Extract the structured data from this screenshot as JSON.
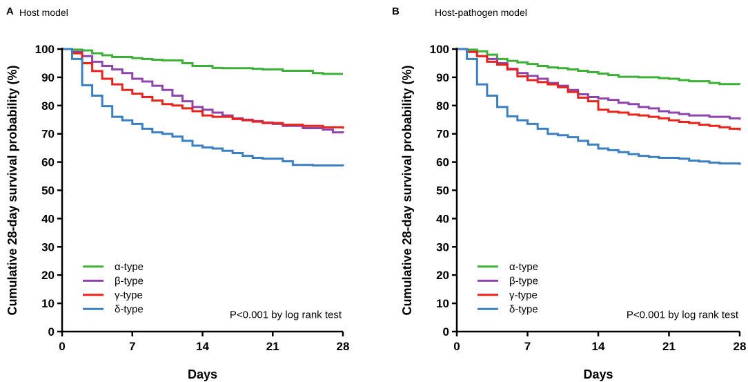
{
  "chart_data": [
    {
      "type": "line",
      "panel_letter": "A",
      "title": "Host model",
      "xlabel": "Days",
      "ylabel": "Cumulative 28-day survival probability (%)",
      "xlim": [
        0,
        28
      ],
      "ylim": [
        0,
        100
      ],
      "xticks": [
        0,
        7,
        14,
        21,
        28
      ],
      "yticks": [
        0,
        10,
        20,
        30,
        40,
        50,
        60,
        70,
        80,
        90,
        100
      ],
      "annotation": "P<0.001 by log rank test",
      "legend_position": "bottom-left",
      "series": [
        {
          "name": "α-type",
          "color": "#3cb034",
          "x": [
            0,
            1,
            2,
            3,
            4,
            5,
            7,
            8,
            9,
            10,
            12,
            13,
            15,
            16,
            19,
            20,
            22,
            25,
            26,
            28
          ],
          "y": [
            100,
            99.8,
            99.5,
            98.5,
            97.8,
            97.2,
            96.8,
            96.5,
            96.2,
            96,
            95,
            94,
            93.3,
            93.2,
            93,
            92.8,
            92.3,
            91.5,
            91.2,
            91.2
          ]
        },
        {
          "name": "β-type",
          "color": "#8e44ad",
          "x": [
            0,
            1,
            2,
            3,
            4,
            5,
            6,
            7,
            8,
            9,
            10,
            11,
            12,
            13,
            14,
            15,
            16,
            17,
            18,
            19,
            20,
            21,
            22,
            24,
            26,
            27,
            28
          ],
          "y": [
            100,
            99,
            97.5,
            95.5,
            94,
            92.8,
            91.5,
            89.5,
            88.5,
            87,
            85.5,
            83.5,
            81.5,
            79.5,
            78.5,
            77.5,
            76.5,
            75.5,
            75,
            74.5,
            74,
            73.5,
            72.8,
            72,
            71.5,
            70.5,
            70.2
          ]
        },
        {
          "name": "γ-type",
          "color": "#e8231c",
          "x": [
            0,
            1,
            2,
            3,
            4,
            5,
            6,
            7,
            8,
            9,
            10,
            11,
            12,
            13,
            14,
            15,
            17,
            18,
            19,
            20,
            22,
            24,
            26,
            28
          ],
          "y": [
            100,
            98.5,
            95,
            92.2,
            89.5,
            87.5,
            85.5,
            84.2,
            83,
            81.8,
            80.5,
            80,
            79,
            78,
            76.5,
            76,
            75.2,
            74.8,
            74.3,
            73.8,
            73.2,
            72.8,
            72.3,
            71.8
          ]
        },
        {
          "name": "δ-type",
          "color": "#3a7fc1",
          "x": [
            0,
            1,
            2,
            3,
            4,
            5,
            6,
            7,
            8,
            9,
            10,
            11,
            12,
            13,
            14,
            15,
            16,
            17,
            18,
            19,
            20,
            22,
            23,
            25,
            28
          ],
          "y": [
            100,
            96.5,
            87.2,
            83.5,
            79.8,
            76,
            74.8,
            73.5,
            71.8,
            70.5,
            70,
            69,
            67.5,
            65.8,
            65.2,
            64.8,
            64,
            63.2,
            62.2,
            61.5,
            61.2,
            60.3,
            59,
            58.8,
            58.5
          ]
        }
      ]
    },
    {
      "type": "line",
      "panel_letter": "B",
      "title": "Host-pathogen model",
      "xlabel": "Days",
      "ylabel": "Cumulative 28-day survival probability (%)",
      "xlim": [
        0,
        28
      ],
      "ylim": [
        0,
        100
      ],
      "xticks": [
        0,
        7,
        14,
        21,
        28
      ],
      "yticks": [
        0,
        10,
        20,
        30,
        40,
        50,
        60,
        70,
        80,
        90,
        100
      ],
      "annotation": "P<0.001 by log rank test",
      "legend_position": "bottom-left",
      "series": [
        {
          "name": "α-type",
          "color": "#3cb034",
          "x": [
            0,
            1,
            2,
            3,
            4,
            5,
            6,
            7,
            8,
            9,
            10,
            11,
            12,
            13,
            14,
            15,
            16,
            18,
            20,
            21,
            22,
            23,
            25,
            26,
            28
          ],
          "y": [
            100,
            99.8,
            99.2,
            98,
            96.5,
            95.8,
            95.3,
            94.7,
            94,
            93.5,
            93.2,
            92.8,
            92.3,
            91.8,
            91.3,
            90.8,
            90.2,
            90,
            89.7,
            89.5,
            89,
            88.6,
            88,
            87.6,
            87.5
          ]
        },
        {
          "name": "β-type",
          "color": "#8e44ad",
          "x": [
            0,
            1,
            2,
            3,
            4,
            5,
            6,
            7,
            8,
            9,
            10,
            11,
            12,
            13,
            14,
            15,
            16,
            17,
            18,
            19,
            20,
            21,
            22,
            23,
            25,
            27,
            28
          ],
          "y": [
            100,
            99,
            97.5,
            96.5,
            95,
            93,
            91.5,
            90.5,
            89.5,
            88,
            87,
            85.5,
            84,
            83,
            82.5,
            82,
            81,
            80.5,
            79.5,
            79,
            78,
            77.5,
            77,
            76.5,
            76,
            75.5,
            75
          ]
        },
        {
          "name": "γ-type",
          "color": "#e8231c",
          "x": [
            0,
            1,
            2,
            3,
            4,
            5,
            6,
            7,
            8,
            9,
            10,
            11,
            12,
            13,
            14,
            15,
            16,
            17,
            18,
            19,
            20,
            21,
            22,
            23,
            24,
            25,
            26,
            27,
            28
          ],
          "y": [
            100,
            99,
            97.5,
            95.5,
            94.5,
            92.8,
            90.3,
            89,
            88.3,
            87.5,
            86.5,
            84.8,
            82.8,
            81.5,
            78.5,
            77.8,
            77.5,
            76.8,
            76.5,
            76,
            75.5,
            74.8,
            74.2,
            73.8,
            73.2,
            72.8,
            72.3,
            71.8,
            71.2
          ]
        },
        {
          "name": "δ-type",
          "color": "#3a7fc1",
          "x": [
            0,
            1,
            2,
            3,
            4,
            5,
            6,
            7,
            8,
            9,
            10,
            11,
            12,
            13,
            14,
            15,
            16,
            17,
            18,
            19,
            20,
            22,
            23,
            24,
            25,
            26,
            28
          ],
          "y": [
            100,
            96.5,
            87.5,
            83.5,
            79.5,
            76.2,
            74.8,
            73.5,
            71.8,
            70,
            69.5,
            68.8,
            67.5,
            66.2,
            64.8,
            64.2,
            63.5,
            62.8,
            62.2,
            61.8,
            61.5,
            61.2,
            60.5,
            60.2,
            59.8,
            59.5,
            59
          ]
        }
      ]
    }
  ]
}
